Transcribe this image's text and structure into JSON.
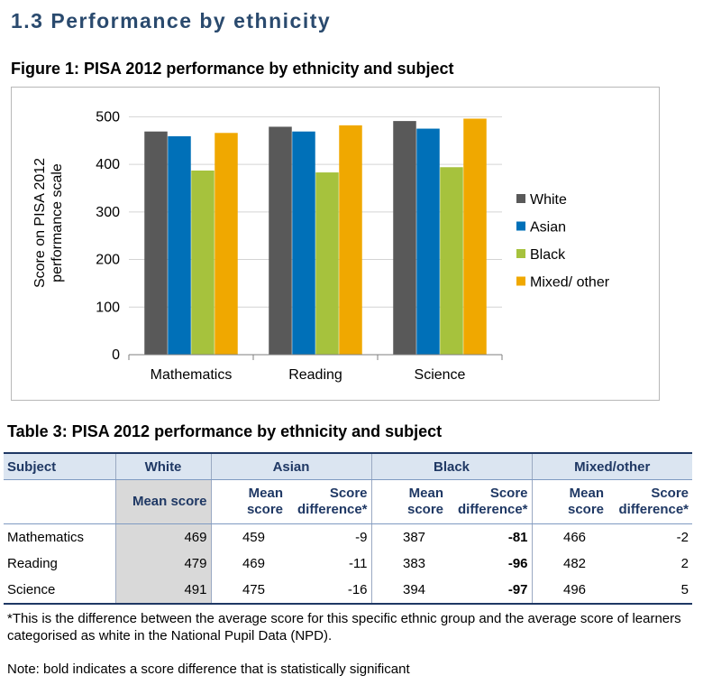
{
  "section_title": "1.3 Performance by ethnicity",
  "figure_title": "Figure 1: PISA 2012 performance by ethnicity and subject",
  "chart_data": {
    "type": "bar",
    "categories": [
      "Mathematics",
      "Reading",
      "Science"
    ],
    "series": [
      {
        "name": "White",
        "color": "#595959",
        "values": [
          469,
          479,
          491
        ]
      },
      {
        "name": "Asian",
        "color": "#0070b8",
        "values": [
          459,
          469,
          475
        ]
      },
      {
        "name": "Black",
        "color": "#a6c23d",
        "values": [
          387,
          383,
          394
        ]
      },
      {
        "name": "Mixed/ other",
        "color": "#f0a800",
        "values": [
          466,
          482,
          496
        ]
      }
    ],
    "ylabel_line1": "Score on PISA 2012",
    "ylabel_line2": "performance scale",
    "ylim": [
      0,
      550
    ],
    "yticks": [
      0,
      100,
      200,
      300,
      400,
      500
    ],
    "grid": true,
    "legend_position": "right"
  },
  "table": {
    "title": "Table 3: PISA 2012 performance by ethnicity and subject",
    "header": {
      "subject": "Subject",
      "white": "White",
      "asian": "Asian",
      "black": "Black",
      "mixed": "Mixed/other",
      "mean_score": "Mean score",
      "mean_l1": "Mean",
      "mean_l2": "score",
      "diff_l1": "Score",
      "diff_l2": "difference*"
    },
    "rows": [
      {
        "subject": "Mathematics",
        "white": "469",
        "asian_mean": "459",
        "asian_diff": "-9",
        "black_mean": "387",
        "black_diff": "-81",
        "mixed_mean": "466",
        "mixed_diff": "-2"
      },
      {
        "subject": "Reading",
        "white": "479",
        "asian_mean": "469",
        "asian_diff": "-11",
        "black_mean": "383",
        "black_diff": "-96",
        "mixed_mean": "482",
        "mixed_diff": "2"
      },
      {
        "subject": "Science",
        "white": "491",
        "asian_mean": "475",
        "asian_diff": "-16",
        "black_mean": "394",
        "black_diff": "-97",
        "mixed_mean": "496",
        "mixed_diff": "5"
      }
    ]
  },
  "footnote": "*This is the difference between the average score for this specific ethnic group and the average score of learners categorised as white in the National Pupil Data (NPD).",
  "note": "Note: bold indicates a score difference that is statistically significant"
}
